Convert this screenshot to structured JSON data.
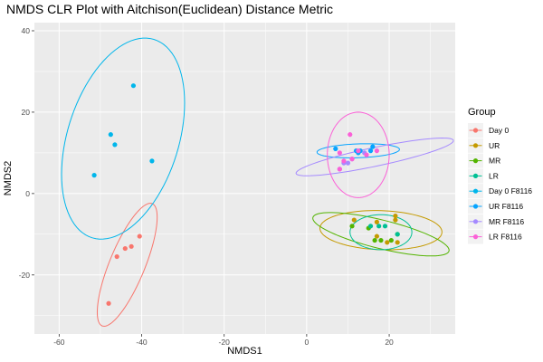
{
  "chart_data": {
    "type": "scatter",
    "title": "NMDS CLR Plot with Aitchison(Euclidean) Distance Metric",
    "xlabel": "NMDS1",
    "ylabel": "NMDS2",
    "xlim": [
      -66,
      36
    ],
    "ylim": [
      -34.5,
      42
    ],
    "x_ticks": [
      -60,
      -40,
      -20,
      0,
      20
    ],
    "y_ticks": [
      -20,
      0,
      20,
      40
    ],
    "grid": true,
    "legend_position": "right",
    "legend_title": "Group",
    "groups": [
      {
        "name": "Day 0",
        "color": "#F8766D",
        "points": [
          [
            -48,
            -27
          ],
          [
            -46,
            -15.5
          ],
          [
            -44,
            -13.5
          ],
          [
            -42.5,
            -13
          ],
          [
            -40.5,
            -10.5
          ]
        ],
        "ellipse": {
          "cx": -43.5,
          "cy": -17.5,
          "rx": 16.2,
          "ry": 4.3,
          "angle": 68
        }
      },
      {
        "name": "UR",
        "color": "#C49A00",
        "points": [
          [
            11.5,
            -6.5
          ],
          [
            17,
            -7
          ],
          [
            17,
            -10.5
          ],
          [
            19.5,
            -12
          ],
          [
            21.5,
            -6.5
          ],
          [
            22,
            -12
          ],
          [
            21.5,
            -5.5
          ]
        ],
        "ellipse": {
          "cx": 18,
          "cy": -9,
          "rx": 14.8,
          "ry": 4.8,
          "angle": -2
        }
      },
      {
        "name": "MR",
        "color": "#53B400",
        "points": [
          [
            11,
            -8
          ],
          [
            15,
            -8.5
          ],
          [
            16.5,
            -11.5
          ],
          [
            18,
            -11.5
          ],
          [
            20.5,
            -11.5
          ],
          [
            22,
            -10
          ]
        ],
        "ellipse": {
          "cx": 18,
          "cy": -10,
          "rx": 17,
          "ry": 3.5,
          "angle": -14
        }
      },
      {
        "name": "LR",
        "color": "#00C094",
        "points": [
          [
            15.5,
            -8
          ],
          [
            17.5,
            -8
          ],
          [
            19,
            -8
          ],
          [
            22,
            -10
          ]
        ],
        "ellipse": {
          "cx": 18,
          "cy": -9.5,
          "rx": 7.5,
          "ry": 4.3,
          "angle": 0
        }
      },
      {
        "name": "Day 0 F8116",
        "color": "#00B6EB",
        "points": [
          [
            -42,
            26.5
          ],
          [
            -47.5,
            14.5
          ],
          [
            -46.5,
            12
          ],
          [
            -37.5,
            8
          ],
          [
            -51.5,
            4.5
          ]
        ],
        "ellipse": {
          "cx": -44.5,
          "cy": 13.5,
          "rx": 25.5,
          "ry": 13.5,
          "angle": 73
        }
      },
      {
        "name": "UR F8116",
        "color": "#06A4FF",
        "points": [
          [
            7,
            11
          ],
          [
            12,
            10.5
          ],
          [
            13,
            10.5
          ],
          [
            15.5,
            10.5
          ],
          [
            16,
            11.5
          ],
          [
            12.5,
            10
          ]
        ],
        "ellipse": {
          "cx": 12.5,
          "cy": 10.5,
          "rx": 10,
          "ry": 1.7,
          "angle": 2
        }
      },
      {
        "name": "MR F8116",
        "color": "#A58AFF",
        "points": [
          [
            9,
            7.5
          ],
          [
            10,
            7.5
          ],
          [
            11,
            8.5
          ],
          [
            14,
            10
          ],
          [
            8,
            6
          ]
        ],
        "ellipse": {
          "cx": 16.5,
          "cy": 9,
          "rx": 19.5,
          "ry": 2.3,
          "angle": 12
        }
      },
      {
        "name": "LR F8116",
        "color": "#FB61D7",
        "points": [
          [
            10.5,
            14.5
          ],
          [
            8,
            10
          ],
          [
            9,
            8
          ],
          [
            11,
            8.5
          ],
          [
            12.5,
            10.5
          ],
          [
            14.5,
            9.5
          ],
          [
            17,
            10.5
          ],
          [
            8,
            6
          ]
        ],
        "ellipse": {
          "cx": 12.5,
          "cy": 9.5,
          "rx": 7.5,
          "ry": 10.5,
          "angle": 0
        }
      }
    ]
  }
}
